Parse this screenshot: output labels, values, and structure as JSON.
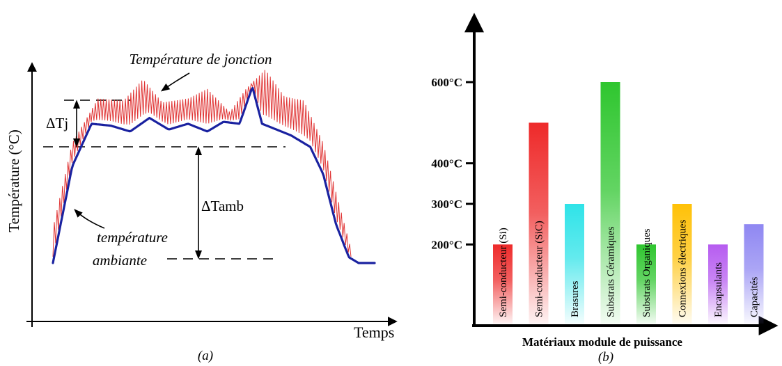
{
  "chart_data": [
    {
      "type": "line",
      "title": "",
      "panel_label": "(a)",
      "xlabel": "Temps",
      "ylabel": "Température (°C)",
      "x_ticks": [],
      "y_ticks": [],
      "grid": false,
      "series": [
        {
          "name": "Température de jonction",
          "color": "#e03535",
          "x": [
            0,
            0.06,
            0.14,
            0.22,
            0.28,
            0.34,
            0.42,
            0.48,
            0.55,
            0.6,
            0.66,
            0.72,
            0.78,
            0.84,
            0.9,
            0.93
          ],
          "y": [
            0.18,
            0.62,
            0.85,
            0.84,
            0.95,
            0.83,
            0.85,
            0.9,
            0.78,
            0.9,
            1.0,
            0.86,
            0.84,
            0.62,
            0.24,
            0.05
          ]
        },
        {
          "name": "température ambiante",
          "color": "#1a22a0",
          "x": [
            0,
            0.06,
            0.12,
            0.18,
            0.24,
            0.3,
            0.36,
            0.42,
            0.48,
            0.53,
            0.58,
            0.62,
            0.65,
            0.68,
            0.74,
            0.8,
            0.84,
            0.88,
            0.92,
            0.95,
            1.0
          ],
          "y": [
            0,
            0.5,
            0.72,
            0.71,
            0.68,
            0.75,
            0.69,
            0.72,
            0.68,
            0.73,
            0.72,
            0.91,
            0.72,
            0.7,
            0.66,
            0.6,
            0.46,
            0.2,
            0.03,
            0,
            0
          ]
        }
      ],
      "annotations": [
        {
          "text": "Température de jonction",
          "points_to": "Température de jonction"
        },
        {
          "text": "température",
          "points_to": "température ambiante"
        },
        {
          "text": "ambiante",
          "points_to": "température ambiante"
        },
        {
          "text": "ΔTj",
          "meaning": "amplitude of junction temperature ripple"
        },
        {
          "text": "ΔTamb",
          "meaning": "rise of ambient temperature"
        }
      ],
      "reference_lines": [
        "upper dashed line at peak junction level",
        "middle dashed line at plateau level",
        "lower dashed line at base level"
      ]
    },
    {
      "type": "bar",
      "title": "",
      "panel_label": "(b)",
      "xlabel": "Matériaux module de puissance",
      "ylabel": "",
      "y_ticks": [
        "200°C",
        "300°C",
        "400°C",
        "600°C"
      ],
      "categories": [
        "Semi-conducteur (Si)",
        "Semi-conducteur (SiC)",
        "Brasures",
        "Substrats Céramiques",
        "Substrats Organiques",
        "Connexions électriques",
        "Encapsulants",
        "Capacités"
      ],
      "values": [
        200,
        500,
        300,
        600,
        200,
        300,
        200,
        250
      ],
      "colors": [
        "#ee2a2a",
        "#ee2a2a",
        "#2fe3e8",
        "#2fc62f",
        "#2fc62f",
        "#ffc107",
        "#b65cf0",
        "#8f87f2"
      ],
      "grid": false
    }
  ]
}
